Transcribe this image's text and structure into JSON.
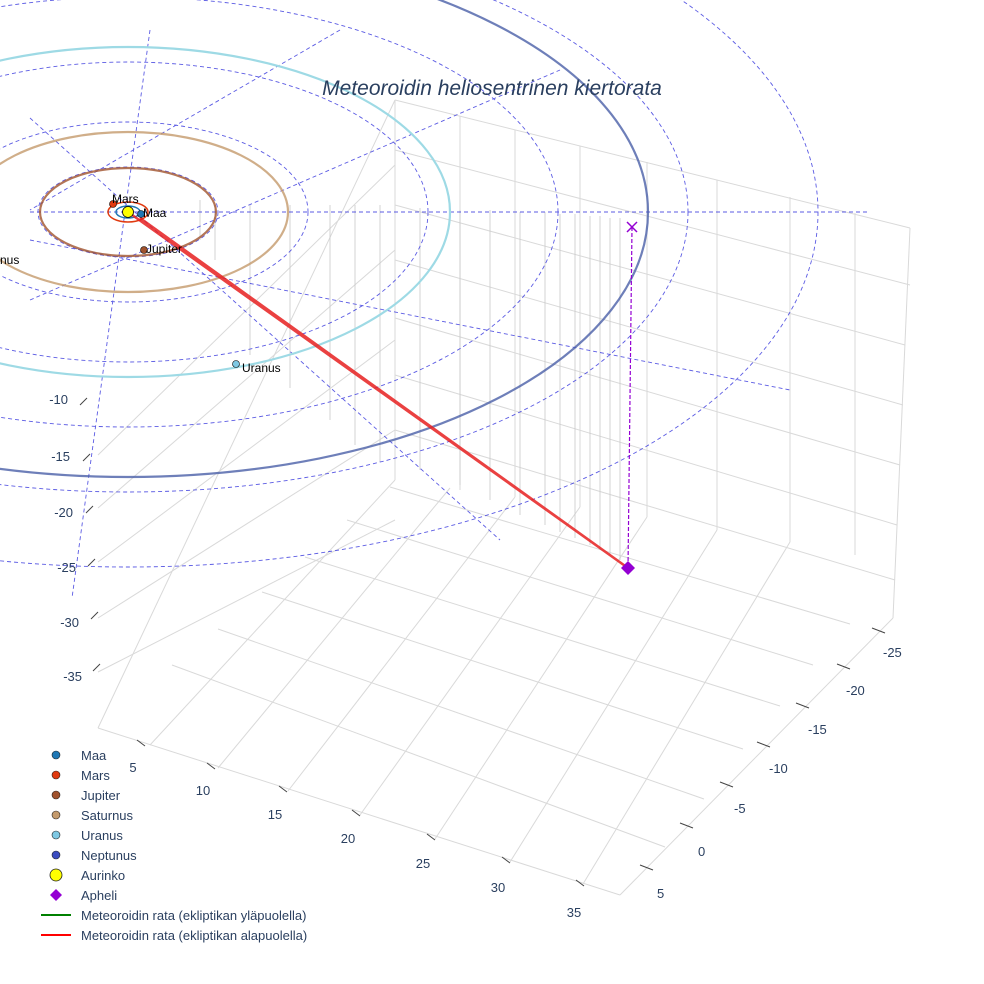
{
  "chart_data": {
    "type": "scatter3d",
    "title": "Meteoroidin heliosentrinen kiertorata",
    "axes": {
      "x_ticks": [
        5,
        10,
        15,
        20,
        25,
        30,
        35
      ],
      "y_ticks": [
        -25,
        -20,
        -15,
        -10,
        -5,
        0,
        5
      ],
      "z_ticks": [
        -10,
        -15,
        -20,
        -25,
        -30,
        -35
      ]
    },
    "planets": [
      {
        "name": "Maa",
        "label": "Maa",
        "color": "#1f77b4"
      },
      {
        "name": "Mars",
        "label": "Mars",
        "color": "#d62728"
      },
      {
        "name": "Jupiter",
        "label": "Jupiter",
        "color": "#8c564b"
      },
      {
        "name": "Saturnus",
        "label": "nus",
        "color": "#c49c94"
      },
      {
        "name": "Uranus",
        "label": "Uranus",
        "color": "#9edae5"
      },
      {
        "name": "Neptunus",
        "label": "",
        "color": "#3949ab"
      }
    ],
    "sun": {
      "name": "Aurinko",
      "color": "#ffff00"
    },
    "aphelion": {
      "name": "Apheli",
      "color": "#9400d3"
    },
    "trajectory": [
      {
        "name": "Meteoroidin rata (ekliptikan yläpuolella)",
        "color": "#008000"
      },
      {
        "name": "Meteoroidin rata (ekliptikan alapuolella)",
        "color": "#ff0000"
      }
    ],
    "legend": [
      {
        "label": "Maa",
        "symbol": "circle",
        "color": "#1f77b4"
      },
      {
        "label": "Mars",
        "symbol": "circle",
        "color": "#e03a10"
      },
      {
        "label": "Jupiter",
        "symbol": "circle",
        "color": "#a0522d"
      },
      {
        "label": "Saturnus",
        "symbol": "circle",
        "color": "#c49a6c"
      },
      {
        "label": "Uranus",
        "symbol": "circle",
        "color": "#7ec8e3"
      },
      {
        "label": "Neptunus",
        "symbol": "circle",
        "color": "#3b4cc0"
      },
      {
        "label": "Aurinko",
        "symbol": "bigcircle",
        "color": "#ffff00"
      },
      {
        "label": "Apheli",
        "symbol": "diamond",
        "color": "#9400d3"
      },
      {
        "label": "Meteoroidin rata (ekliptikan yläpuolella)",
        "symbol": "line",
        "color": "#008000"
      },
      {
        "label": "Meteoroidin rata (ekliptikan alapuolella)",
        "symbol": "line",
        "color": "#ff0000"
      }
    ]
  }
}
